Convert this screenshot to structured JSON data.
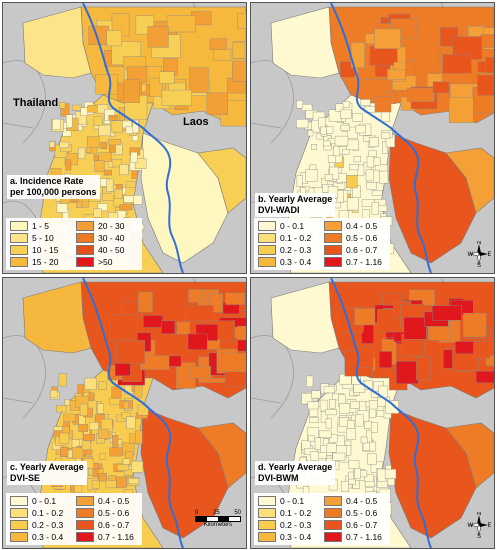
{
  "panels": [
    {
      "id": "a",
      "title_line1": "a. Incidence Rate",
      "title_line2": "per 100,000 persons",
      "legend": [
        {
          "label": "1 - 5",
          "color": "#fff7c0"
        },
        {
          "label": "20 - 30",
          "color": "#f2a035"
        },
        {
          "label": "5 - 10",
          "color": "#fbe48a"
        },
        {
          "label": "30 - 40",
          "color": "#ec7a22"
        },
        {
          "label": "10 - 15",
          "color": "#f8cf55"
        },
        {
          "label": "40 - 50",
          "color": "#e5501a"
        },
        {
          "label": "15 - 20",
          "color": "#f6b93e"
        },
        {
          "label": ">50",
          "color": "#e4151b"
        }
      ]
    },
    {
      "id": "b",
      "title_line1": "b. Yearly Average",
      "title_line2": "DVI-WADI",
      "legend": [
        {
          "label": "0 - 0.1",
          "color": "#fff9d1"
        },
        {
          "label": "0.4 - 0.5",
          "color": "#f5a036"
        },
        {
          "label": "0.1 - 0.2",
          "color": "#fbe07a"
        },
        {
          "label": "0.5 - 0.6",
          "color": "#ee7c26"
        },
        {
          "label": "0.2 - 0.3",
          "color": "#f8cd4f"
        },
        {
          "label": "0.6 - 0.7",
          "color": "#e8561d"
        },
        {
          "label": "0.3 - 0.4",
          "color": "#f6b73f"
        },
        {
          "label": "0.7 - 1.16",
          "color": "#e0171c"
        }
      ]
    },
    {
      "id": "c",
      "title_line1": "c. Yearly Average",
      "title_line2": "DVI-SE",
      "legend": [
        {
          "label": "0 - 0.1",
          "color": "#fff9d1"
        },
        {
          "label": "0.4 - 0.5",
          "color": "#f5a036"
        },
        {
          "label": "0.1 - 0.2",
          "color": "#fbe07a"
        },
        {
          "label": "0.5 - 0.6",
          "color": "#ee7c26"
        },
        {
          "label": "0.2 - 0.3",
          "color": "#f8cd4f"
        },
        {
          "label": "0.6 - 0.7",
          "color": "#e8561d"
        },
        {
          "label": "0.3 - 0.4",
          "color": "#f6b73f"
        },
        {
          "label": "0.7 - 1.16",
          "color": "#e0171c"
        }
      ]
    },
    {
      "id": "d",
      "title_line1": "d. Yearly Average",
      "title_line2": "DVI-BWM",
      "legend": [
        {
          "label": "0 - 0.1",
          "color": "#fff9d1"
        },
        {
          "label": "0.4 - 0.5",
          "color": "#f5a036"
        },
        {
          "label": "0.1 - 0.2",
          "color": "#fbe07a"
        },
        {
          "label": "0.5 - 0.6",
          "color": "#ee7c26"
        },
        {
          "label": "0.2 - 0.3",
          "color": "#f8cd4f"
        },
        {
          "label": "0.6 - 0.7",
          "color": "#e8561d"
        },
        {
          "label": "0.3 - 0.4",
          "color": "#f6b73f"
        },
        {
          "label": "0.7 - 1.16",
          "color": "#e0171c"
        }
      ]
    }
  ],
  "labels": {
    "thailand": "Thailand",
    "laos": "Laos"
  },
  "scalebar": {
    "ticks": [
      "0",
      "25",
      "50"
    ],
    "unit": "Kilometers"
  },
  "north_arrow": {
    "n": "N",
    "s": "S",
    "e": "E",
    "w": "W"
  },
  "colors": {
    "background": "#c8c8c8",
    "river": "#2f6fd6",
    "border": "#ffffff"
  }
}
